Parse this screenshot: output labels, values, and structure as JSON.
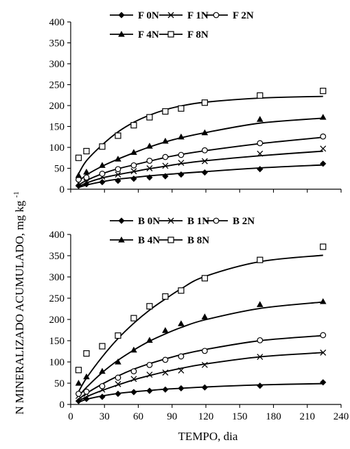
{
  "xlabel": "TEMPO, dia",
  "ylabel": "N MINERALIZADO ACUMULADO, mg kg",
  "ylabel_superscript": "-1",
  "x_ticks": [
    "0",
    "30",
    "60",
    "90",
    "120",
    "150",
    "180",
    "210",
    "240"
  ],
  "chart_data": [
    {
      "type": "scatter",
      "title": "",
      "xlabel": "TEMPO, dia",
      "ylabel": "N MINERALIZADO ACUMULADO, mg kg-1",
      "xlim": [
        0,
        240
      ],
      "ylim": [
        0,
        400
      ],
      "y_ticks": [
        "0",
        "50",
        "100",
        "150",
        "200",
        "250",
        "300",
        "350",
        "400"
      ],
      "grid": false,
      "legend_position": "top",
      "series": [
        {
          "name": "F 0N",
          "marker": "diamond-filled",
          "x": [
            7,
            14,
            28,
            42,
            56,
            70,
            84,
            98,
            119,
            168,
            224
          ],
          "y": [
            8,
            12,
            17,
            20,
            25,
            28,
            31,
            35,
            40,
            48,
            61
          ],
          "fit": [
            4,
            10,
            18,
            24,
            28,
            32,
            35,
            38,
            42,
            51,
            58
          ]
        },
        {
          "name": "F 1N",
          "marker": "x",
          "x": [
            7,
            14,
            28,
            42,
            56,
            70,
            84,
            98,
            119,
            168,
            224
          ],
          "y": [
            15,
            17,
            30,
            35,
            43,
            50,
            56,
            63,
            67,
            85,
            97
          ],
          "fit": [
            6,
            15,
            27,
            35,
            42,
            49,
            55,
            61,
            68,
            80,
            91
          ]
        },
        {
          "name": "F 2N",
          "marker": "circle-open",
          "x": [
            7,
            14,
            28,
            42,
            56,
            70,
            84,
            98,
            119,
            168,
            224
          ],
          "y": [
            23,
            28,
            37,
            48,
            57,
            68,
            77,
            82,
            93,
            110,
            126
          ],
          "fit": [
            10,
            21,
            37,
            49,
            58,
            67,
            76,
            83,
            92,
            109,
            124
          ]
        },
        {
          "name": "F 4N",
          "marker": "triangle-filled",
          "x": [
            7,
            14,
            28,
            42,
            56,
            70,
            84,
            98,
            119,
            168,
            224
          ],
          "y": [
            33,
            41,
            57,
            72,
            88,
            103,
            115,
            125,
            135,
            167,
            172
          ],
          "fit": [
            18,
            34,
            55,
            72,
            87,
            101,
            113,
            123,
            135,
            158,
            170
          ]
        },
        {
          "name": "F 8N",
          "marker": "square-open",
          "x": [
            7,
            14,
            28,
            42,
            56,
            70,
            84,
            98,
            119,
            168,
            224
          ],
          "y": [
            75,
            91,
            102,
            128,
            153,
            172,
            186,
            193,
            207,
            224,
            235
          ],
          "fit": [
            37,
            68,
            106,
            137,
            160,
            177,
            190,
            199,
            208,
            218,
            222
          ]
        }
      ]
    },
    {
      "type": "scatter",
      "title": "",
      "xlabel": "TEMPO, dia",
      "ylabel": "N MINERALIZADO ACUMULADO, mg kg-1",
      "xlim": [
        0,
        240
      ],
      "ylim": [
        0,
        400
      ],
      "y_ticks": [
        "0",
        "50",
        "100",
        "150",
        "200",
        "250",
        "300",
        "350",
        "400"
      ],
      "grid": false,
      "legend_position": "top",
      "series": [
        {
          "name": "B 0N",
          "marker": "diamond-filled",
          "x": [
            7,
            14,
            28,
            42,
            56,
            70,
            84,
            98,
            119,
            168,
            224
          ],
          "y": [
            8,
            13,
            18,
            25,
            29,
            32,
            35,
            38,
            40,
            44,
            52
          ],
          "fit": [
            5,
            12,
            20,
            26,
            30,
            33,
            36,
            38,
            41,
            46,
            49
          ]
        },
        {
          "name": "B 1N",
          "marker": "x",
          "x": [
            7,
            14,
            28,
            42,
            56,
            70,
            84,
            98,
            119,
            168,
            224
          ],
          "y": [
            20,
            25,
            35,
            48,
            60,
            70,
            75,
            80,
            93,
            112,
            122
          ],
          "fit": [
            8,
            18,
            33,
            46,
            58,
            68,
            77,
            85,
            95,
            112,
            122
          ]
        },
        {
          "name": "B 2N",
          "marker": "circle-open",
          "x": [
            7,
            14,
            28,
            42,
            56,
            70,
            84,
            98,
            119,
            168,
            224
          ],
          "y": [
            25,
            30,
            43,
            63,
            78,
            93,
            105,
            113,
            126,
            151,
            163
          ],
          "fit": [
            12,
            26,
            48,
            67,
            83,
            96,
            107,
            117,
            129,
            150,
            162
          ]
        },
        {
          "name": "B 4N",
          "marker": "triangle-filled",
          "x": [
            7,
            14,
            28,
            42,
            56,
            70,
            84,
            98,
            119,
            168,
            224
          ],
          "y": [
            50,
            65,
            78,
            100,
            128,
            151,
            174,
            190,
            206,
            235,
            242
          ],
          "fit": [
            19,
            40,
            75,
            104,
            128,
            149,
            166,
            181,
            199,
            226,
            241
          ]
        },
        {
          "name": "B 8N",
          "marker": "square-open",
          "x": [
            7,
            14,
            28,
            42,
            56,
            70,
            84,
            98,
            119,
            168,
            224
          ],
          "y": [
            81,
            120,
            137,
            162,
            203,
            231,
            254,
            268,
            297,
            340,
            371
          ],
          "fit": [
            30,
            62,
            112,
            155,
            191,
            222,
            248,
            272,
            301,
            336,
            351
          ]
        }
      ]
    }
  ]
}
